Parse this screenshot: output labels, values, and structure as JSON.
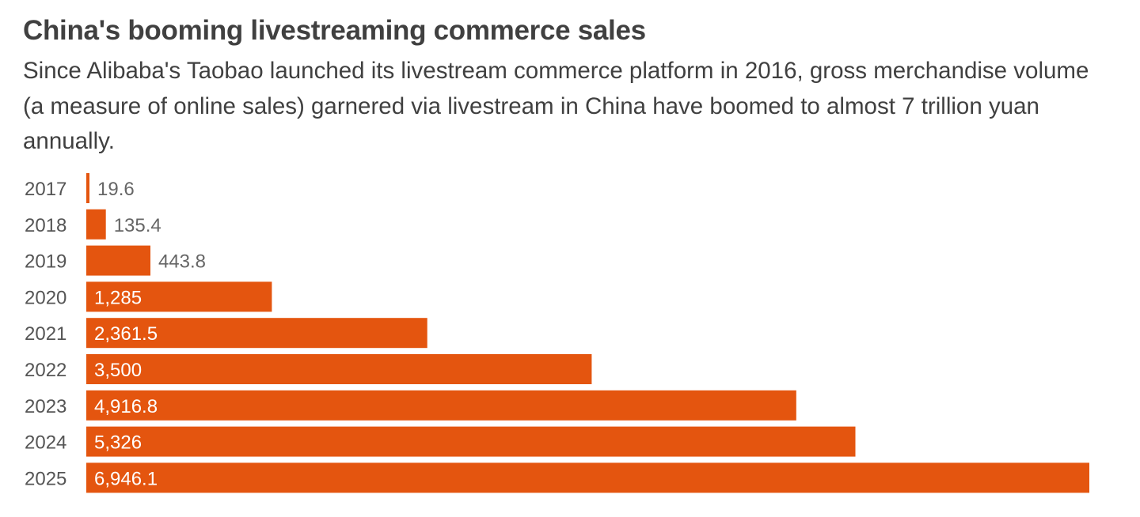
{
  "header": {
    "title": "China's booming livestreaming commerce sales",
    "subtitle": "Since Alibaba's Taobao launched its livestream commerce platform in 2016, gross merchandise volume (a measure of online sales) garnered via livestream in China have boomed to almost 7 trillion yuan annually."
  },
  "colors": {
    "bar": "#e4550f",
    "label_inside": "#ffffff",
    "label_outside": "#666666",
    "axis_text": "#555555",
    "title_text": "#404040"
  },
  "chart_data": {
    "type": "bar",
    "orientation": "horizontal",
    "title": "China's booming livestreaming commerce sales",
    "xlabel": "",
    "ylabel": "",
    "categories": [
      "2017",
      "2018",
      "2019",
      "2020",
      "2021",
      "2022",
      "2023",
      "2024",
      "2025"
    ],
    "values": [
      19.6,
      135.4,
      443.8,
      1285,
      2361.5,
      3500,
      4916.8,
      5326,
      6946.1
    ],
    "value_labels": [
      "19.6",
      "135.4",
      "443.8",
      "1,285",
      "2,361.5",
      "3,500",
      "4,916.8",
      "5,326",
      "6,946.1"
    ],
    "xlim": [
      0,
      6946.1
    ],
    "grid": false,
    "legend": "none"
  }
}
